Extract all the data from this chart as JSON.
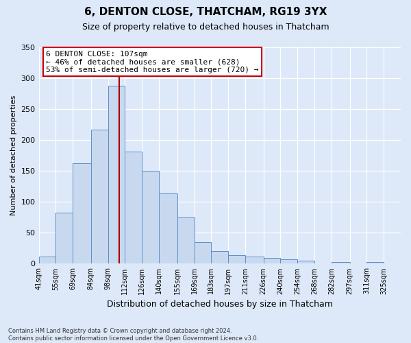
{
  "title": "6, DENTON CLOSE, THATCHAM, RG19 3YX",
  "subtitle": "Size of property relative to detached houses in Thatcham",
  "xlabel": "Distribution of detached houses by size in Thatcham",
  "ylabel": "Number of detached properties",
  "bin_edges": [
    41,
    55,
    69,
    84,
    98,
    112,
    126,
    140,
    155,
    169,
    183,
    197,
    211,
    226,
    240,
    254,
    268,
    282,
    297,
    311,
    325
  ],
  "bar_heights": [
    12,
    83,
    163,
    217,
    288,
    181,
    150,
    114,
    75,
    35,
    20,
    14,
    12,
    9,
    7,
    5,
    0,
    3,
    0,
    3
  ],
  "bar_color": "#c8d9ef",
  "bar_edge_color": "#5b8fc9",
  "vline_x": 107,
  "vline_color": "#aa0000",
  "annotation_title": "6 DENTON CLOSE: 107sqm",
  "annotation_line1": "← 46% of detached houses are smaller (628)",
  "annotation_line2": "53% of semi-detached houses are larger (720) →",
  "annotation_box_facecolor": "#ffffff",
  "annotation_box_edgecolor": "#cc0000",
  "ylim": [
    0,
    350
  ],
  "yticks": [
    0,
    50,
    100,
    150,
    200,
    250,
    300,
    350
  ],
  "background_color": "#dde8f8",
  "plot_bg_color": "#dde8f8",
  "footer_line1": "Contains HM Land Registry data © Crown copyright and database right 2024.",
  "footer_line2": "Contains public sector information licensed under the Open Government Licence v3.0.",
  "title_fontsize": 11,
  "subtitle_fontsize": 9,
  "ylabel_fontsize": 8,
  "xlabel_fontsize": 9,
  "tick_fontsize": 7,
  "footer_fontsize": 6
}
